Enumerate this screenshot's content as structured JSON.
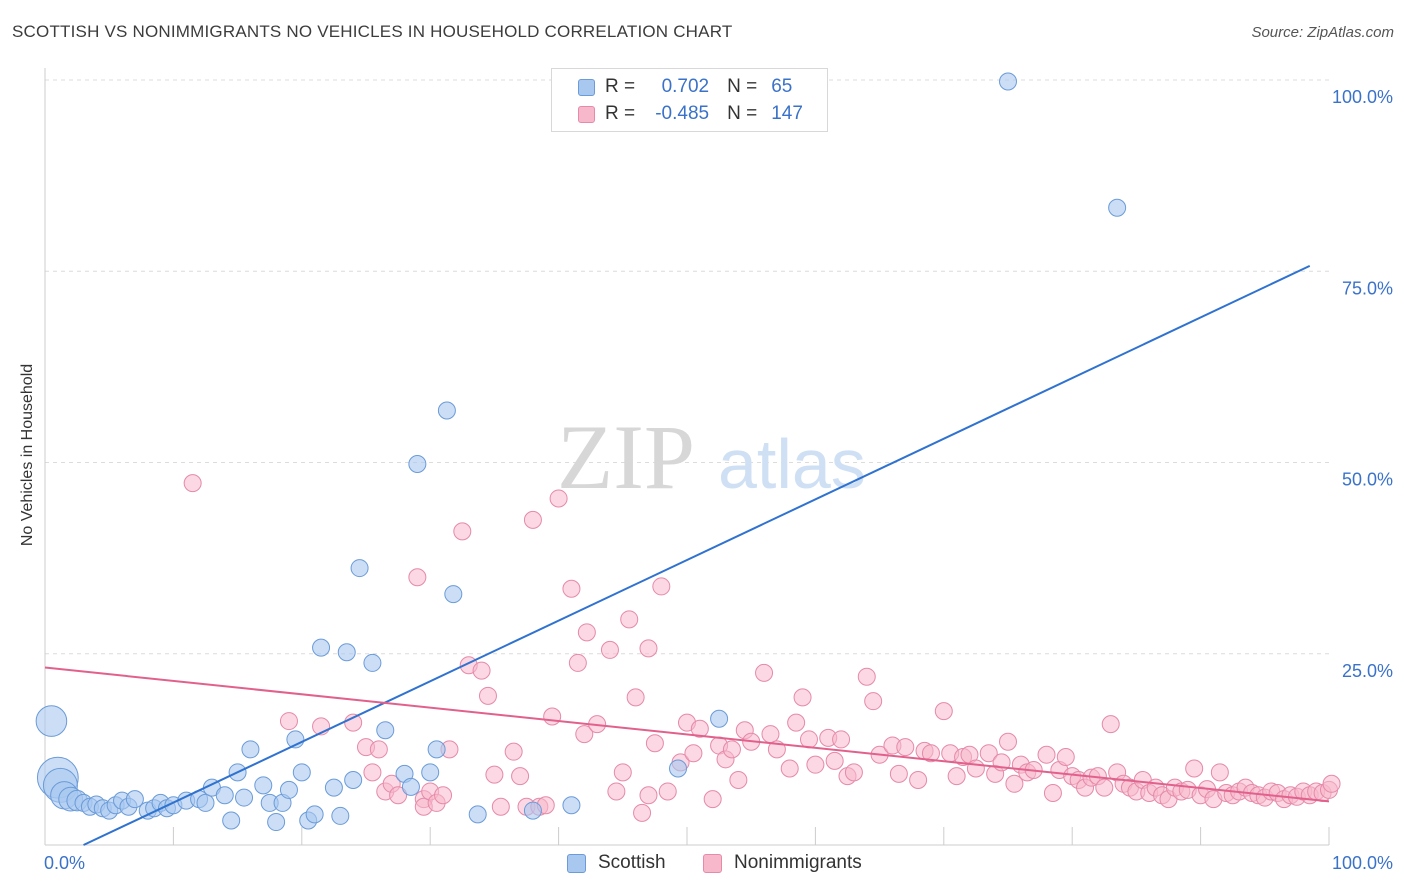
{
  "header": {
    "title": "SCOTTISH VS NONIMMIGRANTS NO VEHICLES IN HOUSEHOLD CORRELATION CHART",
    "source": "Source: ZipAtlas.com"
  },
  "watermark": {
    "zip": "ZIP",
    "atlas": "atlas"
  },
  "legend_top": {
    "rows": [
      {
        "r_label": "R =",
        "r_value": "0.702",
        "n_label": "N =",
        "n_value": "65",
        "color": "#a8c8f0",
        "border": "#6b9bd8"
      },
      {
        "r_label": "R =",
        "r_value": "-0.485",
        "n_label": "N =",
        "n_value": "147",
        "color": "#f7b8cc",
        "border": "#e58aa8"
      }
    ]
  },
  "chart_data": {
    "type": "scatter",
    "title": "SCOTTISH VS NONIMMIGRANTS NO VEHICLES IN HOUSEHOLD CORRELATION CHART",
    "xlabel": "",
    "ylabel": "No Vehicles in Household",
    "xlim": [
      0,
      100
    ],
    "ylim": [
      0,
      100
    ],
    "x_tick_labels": [
      "0.0%",
      "100.0%"
    ],
    "y_tick_labels": [
      "25.0%",
      "50.0%",
      "75.0%",
      "100.0%"
    ],
    "y_ticks": [
      25,
      50,
      75,
      100
    ],
    "grid": true,
    "legend_position": "bottom",
    "colors": {
      "scottish_fill": "#a8c8f0",
      "scottish_stroke": "#6b9bd8",
      "scottish_line": "#2f72d0",
      "nonimm_fill": "#f7b8cc",
      "nonimm_stroke": "#e58aa8",
      "nonimm_line": "#e2608c",
      "grid": "#dcdcdc",
      "axis_label": "#3a72c9"
    },
    "series": [
      {
        "name": "Scottish",
        "r": 0.702,
        "n": 65,
        "trend": [
          [
            3,
            0
          ],
          [
            98.5,
            75.7
          ]
        ],
        "points": [
          [
            0.5,
            16.2,
            1.8
          ],
          [
            1,
            8.8,
            2.4
          ],
          [
            1.2,
            7.8,
            2
          ],
          [
            1.5,
            6.5,
            1.6
          ],
          [
            2,
            6,
            1.4
          ],
          [
            2.5,
            5.8,
            1.2
          ],
          [
            3,
            5.5,
            1
          ],
          [
            3.5,
            5,
            1
          ],
          [
            4,
            5.3,
            1
          ],
          [
            4.5,
            4.8,
            1
          ],
          [
            5,
            4.5,
            1
          ],
          [
            5.5,
            5.2,
            1
          ],
          [
            6,
            5.8,
            1
          ],
          [
            6.5,
            5,
            1
          ],
          [
            7,
            6,
            1
          ],
          [
            8,
            4.5,
            1
          ],
          [
            8.5,
            4.8,
            1
          ],
          [
            9,
            5.5,
            1
          ],
          [
            9.5,
            4.8,
            1
          ],
          [
            10,
            5.2,
            1
          ],
          [
            11,
            5.8,
            1
          ],
          [
            12,
            6,
            1
          ],
          [
            12.5,
            5.5,
            1
          ],
          [
            13,
            7.5,
            1
          ],
          [
            14,
            6.5,
            1
          ],
          [
            14.5,
            3.2,
            1
          ],
          [
            15,
            9.5,
            1
          ],
          [
            15.5,
            6.2,
            1
          ],
          [
            16,
            12.5,
            1
          ],
          [
            17,
            7.8,
            1
          ],
          [
            17.5,
            5.5,
            1
          ],
          [
            18,
            3,
            1
          ],
          [
            18.5,
            5.5,
            1
          ],
          [
            19,
            7.2,
            1
          ],
          [
            19.5,
            13.8,
            1
          ],
          [
            20,
            9.5,
            1
          ],
          [
            20.5,
            3.2,
            1
          ],
          [
            21,
            4,
            1
          ],
          [
            21.5,
            25.8,
            1
          ],
          [
            22.5,
            7.5,
            1
          ],
          [
            23,
            3.8,
            1
          ],
          [
            23.5,
            25.2,
            1
          ],
          [
            24,
            8.5,
            1
          ],
          [
            24.5,
            36.2,
            1
          ],
          [
            25.5,
            23.8,
            1
          ],
          [
            26.5,
            15,
            1
          ],
          [
            28,
            9.3,
            1
          ],
          [
            28.5,
            7.6,
            1
          ],
          [
            29,
            49.8,
            1
          ],
          [
            30,
            9.5,
            1
          ],
          [
            30.5,
            12.5,
            1
          ],
          [
            31.3,
            56.8,
            1
          ],
          [
            31.8,
            32.8,
            1
          ],
          [
            33.7,
            4,
            1
          ],
          [
            38,
            4.5,
            1
          ],
          [
            41,
            5.2,
            1
          ],
          [
            49.3,
            10,
            1
          ],
          [
            52.5,
            16.5,
            1
          ],
          [
            75,
            99.8,
            1
          ],
          [
            83.5,
            83.3,
            1
          ]
        ]
      },
      {
        "name": "Nonimmigrants",
        "r": -0.485,
        "n": 147,
        "trend": [
          [
            0,
            23.2
          ],
          [
            100,
            5.7
          ]
        ],
        "points": [
          [
            11.5,
            47.3
          ],
          [
            19,
            16.2
          ],
          [
            21.5,
            15.5
          ],
          [
            24,
            16
          ],
          [
            25,
            12.8
          ],
          [
            25.5,
            9.5
          ],
          [
            26,
            12.5
          ],
          [
            26.5,
            7
          ],
          [
            27,
            8
          ],
          [
            27.5,
            6.5
          ],
          [
            29,
            35
          ],
          [
            29.5,
            6
          ],
          [
            29.5,
            5
          ],
          [
            30,
            7
          ],
          [
            30.5,
            5.5
          ],
          [
            31,
            6.5
          ],
          [
            31.5,
            12.5
          ],
          [
            32.5,
            41
          ],
          [
            33,
            23.5
          ],
          [
            34,
            22.8
          ],
          [
            34.5,
            19.5
          ],
          [
            35,
            9.2
          ],
          [
            35.5,
            5
          ],
          [
            36.5,
            12.2
          ],
          [
            37,
            9
          ],
          [
            37.5,
            5
          ],
          [
            38,
            42.5
          ],
          [
            38.5,
            5
          ],
          [
            39,
            5.2
          ],
          [
            39.5,
            16.8
          ],
          [
            40,
            45.3
          ],
          [
            41,
            33.5
          ],
          [
            41.5,
            23.8
          ],
          [
            42,
            14.5
          ],
          [
            42.2,
            27.8
          ],
          [
            43,
            15.8
          ],
          [
            44,
            25.5
          ],
          [
            44.5,
            7
          ],
          [
            45,
            9.5
          ],
          [
            45.5,
            29.5
          ],
          [
            46,
            19.3
          ],
          [
            46.5,
            4.2
          ],
          [
            47,
            25.7
          ],
          [
            47.5,
            13.3
          ],
          [
            48,
            33.8
          ],
          [
            48.5,
            7
          ],
          [
            49.5,
            10.8
          ],
          [
            50,
            16
          ],
          [
            50.5,
            12
          ],
          [
            51,
            15.2
          ],
          [
            52,
            6
          ],
          [
            52.5,
            13
          ],
          [
            53,
            11.2
          ],
          [
            53.5,
            12.5
          ],
          [
            54,
            8.5
          ],
          [
            54.5,
            15
          ],
          [
            55,
            13.5
          ],
          [
            56,
            22.5
          ],
          [
            56.5,
            14.5
          ],
          [
            57,
            12.5
          ],
          [
            58,
            10
          ],
          [
            58.5,
            16
          ],
          [
            59,
            19.3
          ],
          [
            59.5,
            13.8
          ],
          [
            60,
            10.5
          ],
          [
            61,
            14
          ],
          [
            61.5,
            11
          ],
          [
            62,
            13.8
          ],
          [
            62.5,
            9
          ],
          [
            63,
            9.5
          ],
          [
            64,
            22
          ],
          [
            64.5,
            18.8
          ],
          [
            65,
            11.8
          ],
          [
            66,
            13
          ],
          [
            66.5,
            9.3
          ],
          [
            67,
            12.8
          ],
          [
            68,
            8.5
          ],
          [
            68.5,
            12.3
          ],
          [
            69,
            12
          ],
          [
            70,
            17.5
          ],
          [
            70.5,
            12
          ],
          [
            71,
            9
          ],
          [
            71.5,
            11.5
          ],
          [
            72,
            11.8
          ],
          [
            72.5,
            10
          ],
          [
            73.5,
            12
          ],
          [
            74,
            9.3
          ],
          [
            74.5,
            10.8
          ],
          [
            75,
            13.5
          ],
          [
            75.5,
            8
          ],
          [
            76,
            10.5
          ],
          [
            76.5,
            9.5
          ],
          [
            77,
            9.8
          ],
          [
            78,
            11.8
          ],
          [
            78.5,
            6.8
          ],
          [
            79,
            9.8
          ],
          [
            79.5,
            11.5
          ],
          [
            80,
            9
          ],
          [
            80.5,
            8.5
          ],
          [
            81,
            7.5
          ],
          [
            81.5,
            8.8
          ],
          [
            82,
            9
          ],
          [
            82.5,
            7.5
          ],
          [
            83,
            15.8
          ],
          [
            83.5,
            9.5
          ],
          [
            84,
            8
          ],
          [
            84.5,
            7.5
          ],
          [
            85,
            7
          ],
          [
            85.5,
            8.5
          ],
          [
            86,
            6.8
          ],
          [
            86.5,
            7.5
          ],
          [
            87,
            6.5
          ],
          [
            87.5,
            6
          ],
          [
            88,
            7.5
          ],
          [
            88.5,
            7
          ],
          [
            89,
            7.2
          ],
          [
            89.5,
            10
          ],
          [
            90,
            6.5
          ],
          [
            90.5,
            7.3
          ],
          [
            91,
            6
          ],
          [
            91.5,
            9.5
          ],
          [
            92,
            6.8
          ],
          [
            92.5,
            6.5
          ],
          [
            93,
            7
          ],
          [
            93.5,
            7.5
          ],
          [
            94,
            6.8
          ],
          [
            94.5,
            6.5
          ],
          [
            95,
            6.2
          ],
          [
            95.5,
            7
          ],
          [
            96,
            6.8
          ],
          [
            96.5,
            6
          ],
          [
            97,
            6.5
          ],
          [
            97.5,
            6.3
          ],
          [
            98,
            7
          ],
          [
            98.5,
            6.5
          ],
          [
            99,
            7
          ],
          [
            99.5,
            6.8
          ],
          [
            100,
            7.2
          ],
          [
            100.2,
            8
          ],
          [
            47,
            6.5
          ]
        ]
      }
    ]
  }
}
